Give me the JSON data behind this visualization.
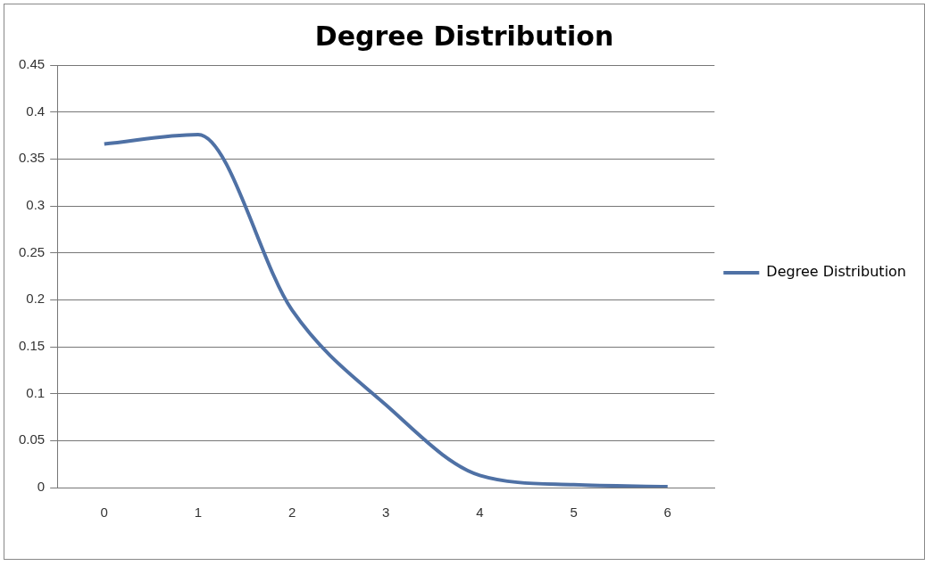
{
  "chart_data": {
    "type": "line",
    "title": "Degree Distribution",
    "categories": [
      "0",
      "1",
      "2",
      "3",
      "4",
      "5",
      "6"
    ],
    "series": [
      {
        "name": "Degree Distribution",
        "color": "#4f71a5",
        "values": [
          0.366,
          0.376,
          0.189,
          0.088,
          0.013,
          0.003,
          0.001
        ]
      }
    ],
    "ylim": [
      0,
      0.45
    ],
    "yticks": [
      0,
      0.05,
      0.1,
      0.15,
      0.2,
      0.25,
      0.3,
      0.35,
      0.4,
      0.45
    ],
    "grid": "y",
    "legend": "right",
    "marker": "none",
    "line_style": "solid"
  }
}
